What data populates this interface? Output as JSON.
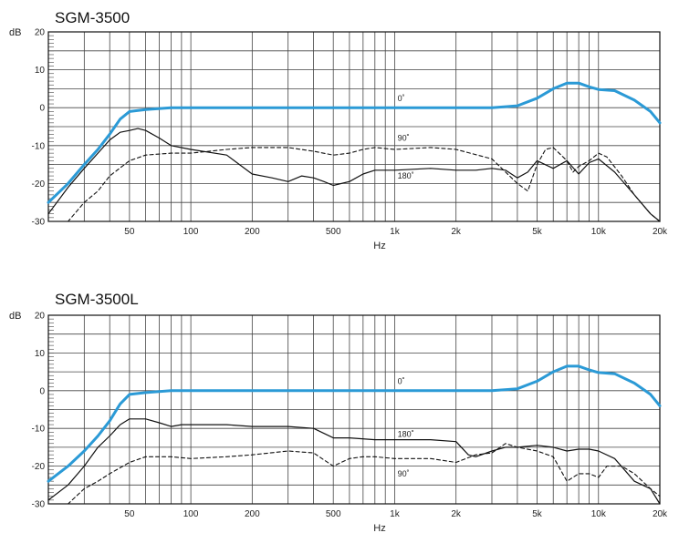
{
  "colors": {
    "axis_0deg": "#2b9ad6",
    "ink": "#111111",
    "grid": "#444444"
  },
  "chart_data": [
    {
      "type": "line",
      "title": "SGM-3500",
      "ylabel": "dB",
      "xlabel": "Hz",
      "xscale": "log",
      "xlim": [
        20,
        20000
      ],
      "ylim": [
        -30,
        20
      ],
      "grid": true,
      "x_ticks": [
        50,
        100,
        200,
        500,
        1000,
        2000,
        5000,
        10000,
        20000
      ],
      "x_tick_labels": [
        "50",
        "100",
        "200",
        "500",
        "1k",
        "2k",
        "5k",
        "10k",
        "20k"
      ],
      "y_ticks": [
        20,
        10,
        0,
        -10,
        -20,
        -30
      ],
      "y_tick_labels": [
        "20",
        "10",
        "0",
        "-10",
        "-20",
        "-30"
      ],
      "series": [
        {
          "name": "0˚",
          "style": "thick-blue",
          "x": [
            20,
            25,
            30,
            35,
            40,
            45,
            50,
            60,
            80,
            100,
            200,
            500,
            1000,
            2000,
            3000,
            4000,
            5000,
            6000,
            7000,
            8000,
            9000,
            10000,
            12000,
            15000,
            18000,
            20000
          ],
          "y": [
            -25,
            -20,
            -15,
            -11,
            -7,
            -3,
            -1,
            -0.5,
            0,
            0,
            0,
            0,
            0,
            0,
            0,
            0.5,
            2.5,
            5,
            6.5,
            6.5,
            5.5,
            4.8,
            4.5,
            2,
            -1,
            -4
          ]
        },
        {
          "name": "90˚",
          "style": "dashed",
          "x": [
            20,
            25,
            30,
            35,
            40,
            50,
            60,
            80,
            100,
            150,
            200,
            300,
            400,
            500,
            600,
            700,
            800,
            1000,
            1500,
            2000,
            3000,
            4000,
            4500,
            5000,
            5500,
            6000,
            7000,
            7500,
            8000,
            9000,
            10000,
            11000,
            13000,
            15000,
            18000,
            20000
          ],
          "y": [
            -30,
            -30,
            -25,
            -22,
            -18,
            -14,
            -12.5,
            -12,
            -12,
            -11,
            -10.5,
            -10.5,
            -11.5,
            -12.5,
            -12,
            -11,
            -10.5,
            -11,
            -10.5,
            -11,
            -13.5,
            -20,
            -22,
            -15,
            -11,
            -10.5,
            -14,
            -17,
            -15.5,
            -14,
            -12,
            -13,
            -18,
            -23,
            -28,
            -30
          ],
          "label_x": 1100,
          "label_y": -8
        },
        {
          "name": "180˚",
          "style": "solid",
          "x": [
            20,
            25,
            30,
            35,
            40,
            45,
            50,
            55,
            60,
            70,
            80,
            100,
            150,
            200,
            250,
            300,
            350,
            400,
            450,
            500,
            600,
            700,
            800,
            1000,
            1500,
            2000,
            2500,
            3000,
            3500,
            4000,
            4500,
            5000,
            6000,
            7000,
            8000,
            9000,
            10000,
            12000,
            15000,
            18000,
            20000
          ],
          "y": [
            -28,
            -21,
            -16,
            -12,
            -8.5,
            -6.5,
            -6,
            -5.5,
            -6,
            -8,
            -10,
            -11,
            -12.5,
            -17.5,
            -18.5,
            -19.5,
            -18,
            -18.5,
            -19.5,
            -20.5,
            -19.5,
            -17.5,
            -16.5,
            -16.5,
            -16,
            -16.5,
            -16.5,
            -16,
            -16.5,
            -18.5,
            -17,
            -14,
            -16,
            -14,
            -17.5,
            -14.5,
            -13.5,
            -17,
            -23,
            -28,
            -30
          ],
          "label_x": 1100,
          "label_y": -18
        }
      ]
    },
    {
      "type": "line",
      "title": "SGM-3500L",
      "ylabel": "dB",
      "xlabel": "Hz",
      "xscale": "log",
      "xlim": [
        20,
        20000
      ],
      "ylim": [
        -30,
        20
      ],
      "grid": true,
      "x_ticks": [
        50,
        100,
        200,
        500,
        1000,
        2000,
        5000,
        10000,
        20000
      ],
      "x_tick_labels": [
        "50",
        "100",
        "200",
        "500",
        "1k",
        "2k",
        "5k",
        "10k",
        "20k"
      ],
      "y_ticks": [
        20,
        10,
        0,
        -10,
        -20,
        -30
      ],
      "y_tick_labels": [
        "20",
        "10",
        "0",
        "-10",
        "-20",
        "-30"
      ],
      "series": [
        {
          "name": "0˚",
          "style": "thick-blue",
          "x": [
            20,
            25,
            30,
            35,
            40,
            45,
            50,
            60,
            80,
            100,
            200,
            500,
            1000,
            2000,
            3000,
            4000,
            5000,
            6000,
            7000,
            8000,
            9000,
            10000,
            12000,
            15000,
            18000,
            20000
          ],
          "y": [
            -24,
            -20,
            -16,
            -12,
            -8,
            -3.5,
            -1,
            -0.5,
            0,
            0,
            0,
            0,
            0,
            0,
            0,
            0.5,
            2.5,
            5,
            6.5,
            6.5,
            5.5,
            4.8,
            4.5,
            2,
            -1,
            -4
          ],
          "label_x": 1100,
          "label_y": 2.5
        },
        {
          "name": "180˚",
          "style": "solid",
          "x": [
            20,
            25,
            30,
            35,
            40,
            45,
            50,
            60,
            70,
            80,
            90,
            100,
            150,
            200,
            300,
            400,
            500,
            600,
            800,
            1000,
            1500,
            2000,
            2300,
            2500,
            3000,
            3500,
            4000,
            5000,
            6000,
            7000,
            8000,
            9000,
            10000,
            12000,
            15000,
            18000,
            20000
          ],
          "y": [
            -29,
            -25,
            -20,
            -15,
            -12,
            -9,
            -7.5,
            -7.5,
            -8.5,
            -9.5,
            -9,
            -9,
            -9,
            -9.5,
            -9.5,
            -10,
            -12.5,
            -12.5,
            -13,
            -13,
            -13,
            -13.5,
            -17,
            -17.5,
            -16,
            -15,
            -15,
            -14.5,
            -15,
            -16,
            -15.5,
            -15.5,
            -16,
            -18,
            -24,
            -26,
            -30
          ],
          "label_x": 1100,
          "label_y": -11.5
        },
        {
          "name": "90˚",
          "style": "dashed",
          "x": [
            20,
            25,
            30,
            35,
            40,
            50,
            60,
            80,
            100,
            150,
            200,
            300,
            400,
            500,
            600,
            700,
            800,
            1000,
            1500,
            2000,
            2500,
            3000,
            3500,
            4000,
            5000,
            6000,
            7000,
            8000,
            9000,
            10000,
            11000,
            12000,
            13000,
            15000,
            18000,
            20000
          ],
          "y": [
            -30,
            -30,
            -26,
            -24,
            -22,
            -19,
            -17.5,
            -17.5,
            -18,
            -17.5,
            -17,
            -16,
            -16.5,
            -20,
            -18,
            -17.5,
            -17.5,
            -18,
            -18,
            -19,
            -17,
            -16.5,
            -14,
            -15,
            -16,
            -17.5,
            -24,
            -22,
            -22,
            -23,
            -20,
            -20,
            -20,
            -22,
            -26,
            -28
          ],
          "label_x": 1100,
          "label_y": -22
        }
      ]
    }
  ]
}
